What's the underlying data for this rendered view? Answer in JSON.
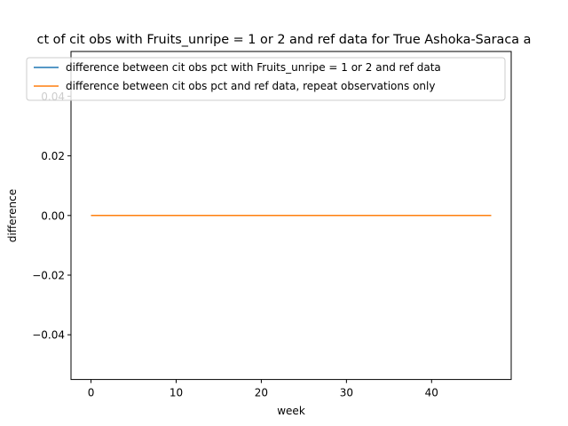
{
  "chart_data": {
    "type": "line",
    "title": "ct of cit obs with Fruits_unripe = 1 or 2 and ref data for True Ashoka-Saraca a",
    "xlabel": "week",
    "ylabel": "difference",
    "xlim": [
      -2.35,
      49.35
    ],
    "ylim": [
      -0.055,
      0.055
    ],
    "x_ticks": [
      0,
      10,
      20,
      30,
      40
    ],
    "x_tick_labels": [
      "0",
      "10",
      "20",
      "30",
      "40"
    ],
    "y_ticks": [
      -0.04,
      -0.02,
      0.0,
      0.02,
      0.04
    ],
    "y_tick_labels": [
      "−0.04",
      "−0.02",
      "0.00",
      "0.02",
      "0.04"
    ],
    "grid": false,
    "legend_position": "top-center",
    "series": [
      {
        "name": "difference between cit obs pct with Fruits_unripe = 1 or 2 and ref data",
        "color": "#1f77b4",
        "x": [
          0,
          47
        ],
        "y": [
          0,
          0
        ]
      },
      {
        "name": "difference between cit obs pct and ref data, repeat observations only",
        "color": "#ff7f0e",
        "x": [
          0,
          47
        ],
        "y": [
          0,
          0
        ]
      }
    ]
  }
}
